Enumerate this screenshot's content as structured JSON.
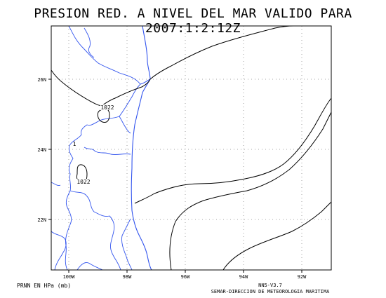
{
  "title": "PRESION RED. A NIVEL DEL MAR VALIDO PARA 2007:1:2:12Z",
  "map": {
    "lat_labels": [
      "26N",
      "24N",
      "22N"
    ],
    "lon_labels": [
      "100W",
      "98W",
      "96W",
      "94W",
      "92W"
    ],
    "gridlines": "dotted",
    "coastline_color": "#3355ee",
    "isobar_color": "#000000",
    "isobar_labels": [
      "1022",
      "1",
      "1022"
    ]
  },
  "footer": {
    "units": "PRNN EN HPa (mb)",
    "model": "NN5-V3.7",
    "agency": "SEMAR-DIRECCION DE METEOROLOGIA MARITIMA"
  }
}
